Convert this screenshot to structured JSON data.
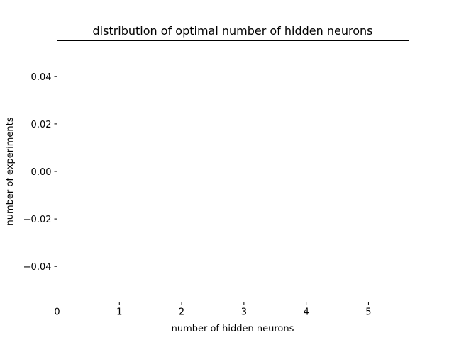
{
  "chart_data": {
    "type": "bar",
    "title": "distribution of optimal number of hidden neurons",
    "xlabel": "number of hidden neurons",
    "ylabel": "number of experiments",
    "xlim": [
      0,
      5.65
    ],
    "ylim": [
      -0.055,
      0.055
    ],
    "x_ticks": [
      0,
      1,
      2,
      3,
      4,
      5
    ],
    "x_tick_labels": [
      "0",
      "1",
      "2",
      "3",
      "4",
      "5"
    ],
    "y_ticks": [
      0.04,
      0.02,
      0.0,
      -0.02,
      -0.04
    ],
    "y_tick_labels": [
      "0.04",
      "0.02",
      "0.00",
      "−0.02",
      "−0.04"
    ],
    "categories": [],
    "values": [],
    "grid": false
  }
}
